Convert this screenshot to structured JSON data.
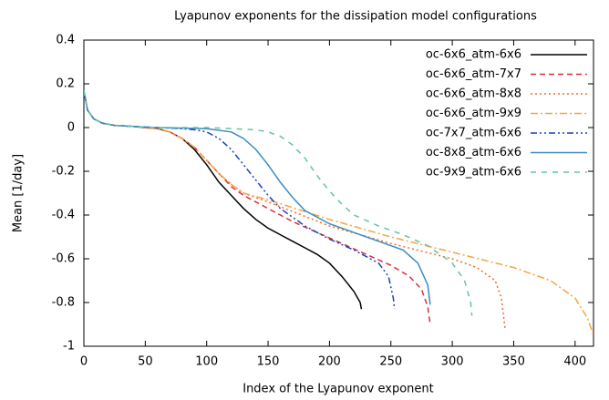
{
  "chart_data": {
    "type": "line",
    "title": "Lyapunov exponents for the dissipation model configurations",
    "xlabel": "Index of the Lyapunov exponent",
    "ylabel": "Mean [1/day]",
    "xlim": [
      0,
      415
    ],
    "ylim": [
      -1,
      0.4
    ],
    "xticks": [
      0,
      50,
      100,
      150,
      200,
      250,
      300,
      350,
      400
    ],
    "yticks": [
      {
        "value": 0.4,
        "label": "0.4"
      },
      {
        "value": 0.2,
        "label": "0.2"
      },
      0,
      {
        "value": -0.2,
        "label": "-0.2"
      },
      {
        "value": -0.4,
        "label": "-0.4"
      },
      {
        "value": -0.6,
        "label": "-0.6"
      },
      {
        "value": -0.8,
        "label": "-0.8"
      },
      -1
    ],
    "legend": "top-right",
    "series": [
      {
        "name": "oc-6x6_atm-6x6",
        "color": "#000000",
        "x": [
          0,
          3,
          8,
          15,
          25,
          40,
          60,
          70,
          80,
          90,
          100,
          110,
          120,
          130,
          140,
          150,
          160,
          170,
          180,
          190,
          200,
          210,
          220,
          225,
          226
        ],
        "values": [
          0.17,
          0.08,
          0.04,
          0.02,
          0.01,
          0.005,
          -0.005,
          -0.02,
          -0.05,
          -0.1,
          -0.17,
          -0.25,
          -0.31,
          -0.37,
          -0.42,
          -0.46,
          -0.49,
          -0.52,
          -0.55,
          -0.58,
          -0.62,
          -0.68,
          -0.75,
          -0.8,
          -0.83
        ]
      },
      {
        "name": "oc-6x6_atm-7x7",
        "color": "#d62f3c",
        "x": [
          0,
          3,
          8,
          15,
          25,
          40,
          60,
          70,
          80,
          90,
          100,
          110,
          120,
          130,
          150,
          170,
          190,
          210,
          230,
          250,
          265,
          275,
          280,
          282
        ],
        "values": [
          0.17,
          0.08,
          0.04,
          0.02,
          0.01,
          0.005,
          -0.005,
          -0.02,
          -0.05,
          -0.09,
          -0.15,
          -0.21,
          -0.27,
          -0.31,
          -0.37,
          -0.43,
          -0.48,
          -0.53,
          -0.58,
          -0.63,
          -0.68,
          -0.74,
          -0.82,
          -0.9
        ]
      },
      {
        "name": "oc-6x6_atm-8x8",
        "color": "#f26b2a",
        "x": [
          0,
          3,
          8,
          15,
          25,
          40,
          60,
          70,
          80,
          90,
          100,
          110,
          120,
          130,
          150,
          200,
          250,
          300,
          320,
          335,
          340,
          343
        ],
        "values": [
          0.17,
          0.08,
          0.04,
          0.02,
          0.01,
          0.005,
          -0.005,
          -0.02,
          -0.05,
          -0.09,
          -0.15,
          -0.21,
          -0.26,
          -0.3,
          -0.34,
          -0.45,
          -0.53,
          -0.6,
          -0.64,
          -0.7,
          -0.78,
          -0.92
        ]
      },
      {
        "name": "oc-6x6_atm-9x9",
        "color": "#f5a43f",
        "x": [
          0,
          3,
          8,
          15,
          25,
          40,
          60,
          70,
          80,
          90,
          100,
          110,
          120,
          130,
          150,
          200,
          250,
          300,
          350,
          380,
          400,
          410,
          415
        ],
        "values": [
          0.17,
          0.08,
          0.04,
          0.02,
          0.01,
          0.005,
          -0.005,
          -0.02,
          -0.05,
          -0.09,
          -0.15,
          -0.21,
          -0.26,
          -0.3,
          -0.33,
          -0.42,
          -0.5,
          -0.57,
          -0.64,
          -0.7,
          -0.78,
          -0.87,
          -0.95
        ]
      },
      {
        "name": "oc-7x7_atm-6x6",
        "color": "#1f3fbf",
        "x": [
          0,
          3,
          8,
          15,
          25,
          40,
          60,
          80,
          90,
          100,
          110,
          120,
          130,
          140,
          150,
          160,
          180,
          200,
          220,
          240,
          248,
          252,
          253
        ],
        "values": [
          0.17,
          0.08,
          0.04,
          0.02,
          0.01,
          0.005,
          0,
          -0.005,
          -0.01,
          -0.02,
          -0.05,
          -0.1,
          -0.17,
          -0.24,
          -0.31,
          -0.37,
          -0.45,
          -0.51,
          -0.56,
          -0.62,
          -0.68,
          -0.78,
          -0.83
        ]
      },
      {
        "name": "oc-8x8_atm-6x6",
        "color": "#3a8cc0",
        "x": [
          0,
          3,
          8,
          15,
          25,
          40,
          60,
          100,
          120,
          130,
          140,
          150,
          160,
          170,
          180,
          200,
          220,
          240,
          260,
          272,
          280,
          282
        ],
        "values": [
          0.17,
          0.08,
          0.04,
          0.02,
          0.01,
          0.005,
          0,
          -0.005,
          -0.02,
          -0.05,
          -0.1,
          -0.17,
          -0.25,
          -0.32,
          -0.38,
          -0.44,
          -0.48,
          -0.52,
          -0.56,
          -0.62,
          -0.72,
          -0.81
        ]
      },
      {
        "name": "oc-9x9_atm-6x6",
        "color": "#66c2a4",
        "x": [
          0,
          3,
          8,
          15,
          25,
          40,
          60,
          100,
          140,
          150,
          160,
          170,
          180,
          190,
          200,
          210,
          220,
          240,
          260,
          280,
          300,
          310,
          315,
          316
        ],
        "values": [
          0.17,
          0.08,
          0.04,
          0.02,
          0.01,
          0.005,
          0,
          0,
          -0.01,
          -0.02,
          -0.04,
          -0.08,
          -0.14,
          -0.22,
          -0.29,
          -0.35,
          -0.4,
          -0.45,
          -0.49,
          -0.54,
          -0.62,
          -0.7,
          -0.8,
          -0.86
        ]
      }
    ]
  }
}
